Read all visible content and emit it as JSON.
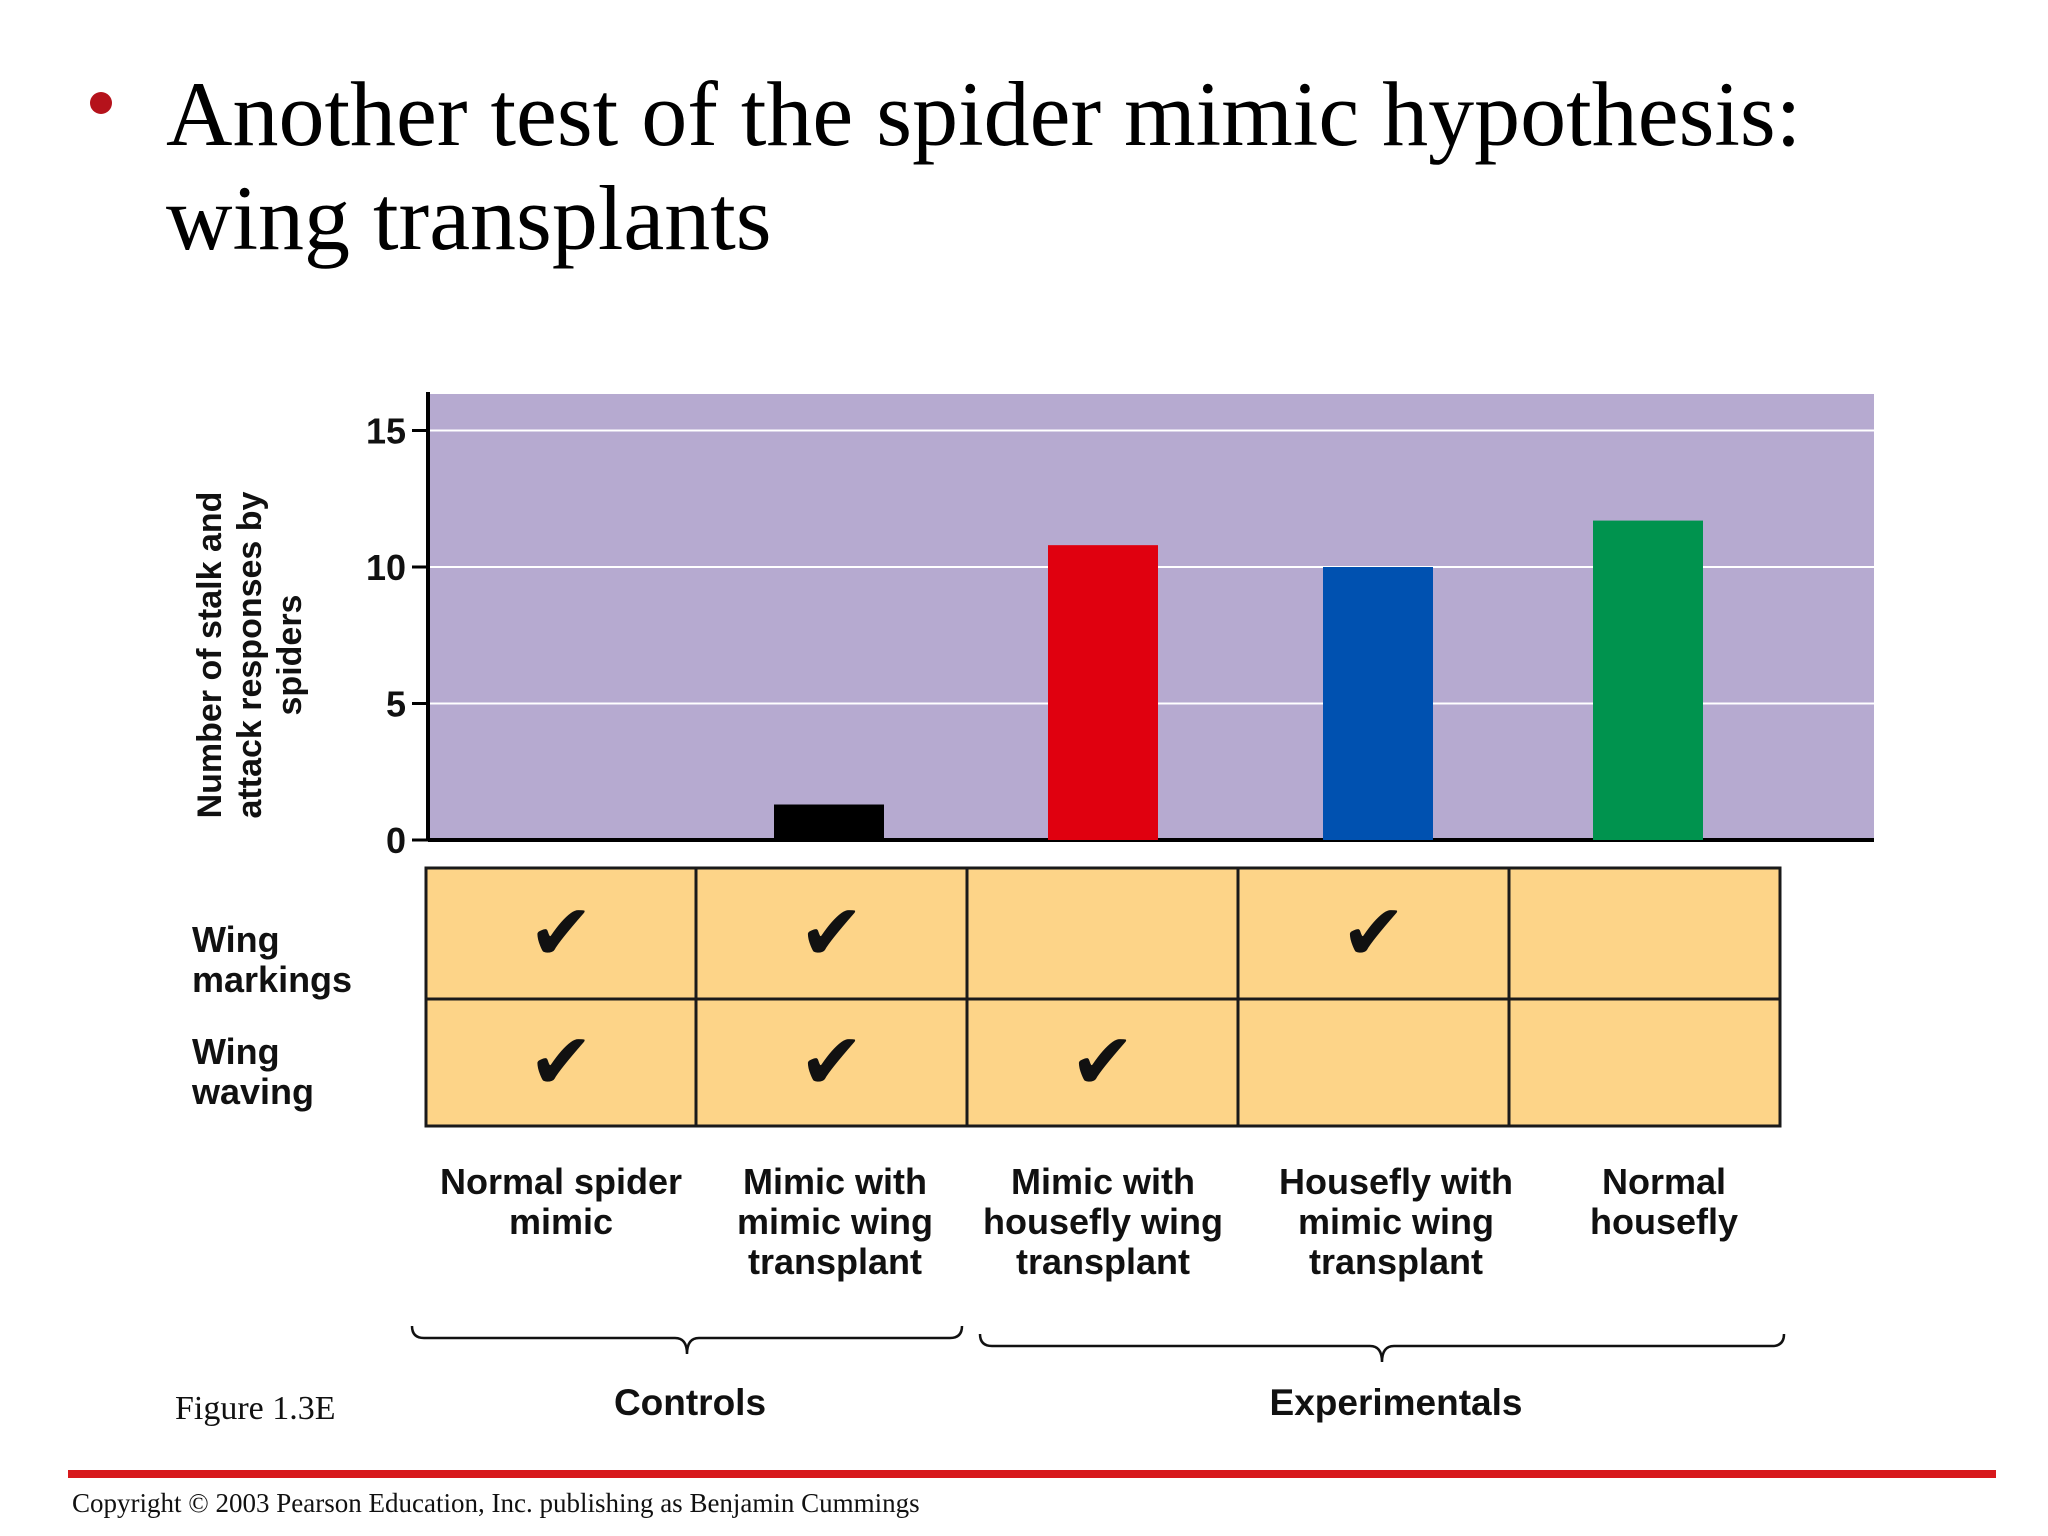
{
  "slide": {
    "title": "Another test of the spider mimic hypothesis: wing transplants",
    "figure_label": "Figure 1.3E",
    "copyright": "Copyright © 2003 Pearson Education, Inc. publishing as Benjamin Cummings",
    "accent_color": "#b5121b",
    "rule_color": "#d7191c"
  },
  "chart_data": {
    "type": "bar",
    "ylabel": "Number of stalk and attack responses by spiders",
    "ylim": [
      0,
      16
    ],
    "yticks": [
      "0",
      "5",
      "10",
      "15"
    ],
    "grid": true,
    "background_color": "#b6aad0",
    "categories": [
      "Normal spider mimic",
      "Mimic with mimic wing transplant",
      "Mimic with housefly wing transplant",
      "Housefly with mimic wing transplant",
      "Normal housefly"
    ],
    "values": [
      0,
      1.3,
      10.8,
      10.0,
      11.7
    ],
    "colors": [
      "#000000",
      "#000000",
      "#e0000f",
      "#0051b0",
      "#00934e"
    ]
  },
  "table": {
    "row_labels": [
      "Wing markings",
      "Wing waving"
    ],
    "check_glyph": "✔",
    "cell_color": "#fdd488",
    "checks": [
      [
        true,
        true,
        false,
        true,
        false
      ],
      [
        true,
        true,
        true,
        false,
        false
      ]
    ]
  },
  "groups": [
    {
      "label": "Controls",
      "from": 0,
      "to": 1
    },
    {
      "label": "Experimentals",
      "from": 2,
      "to": 4
    }
  ]
}
